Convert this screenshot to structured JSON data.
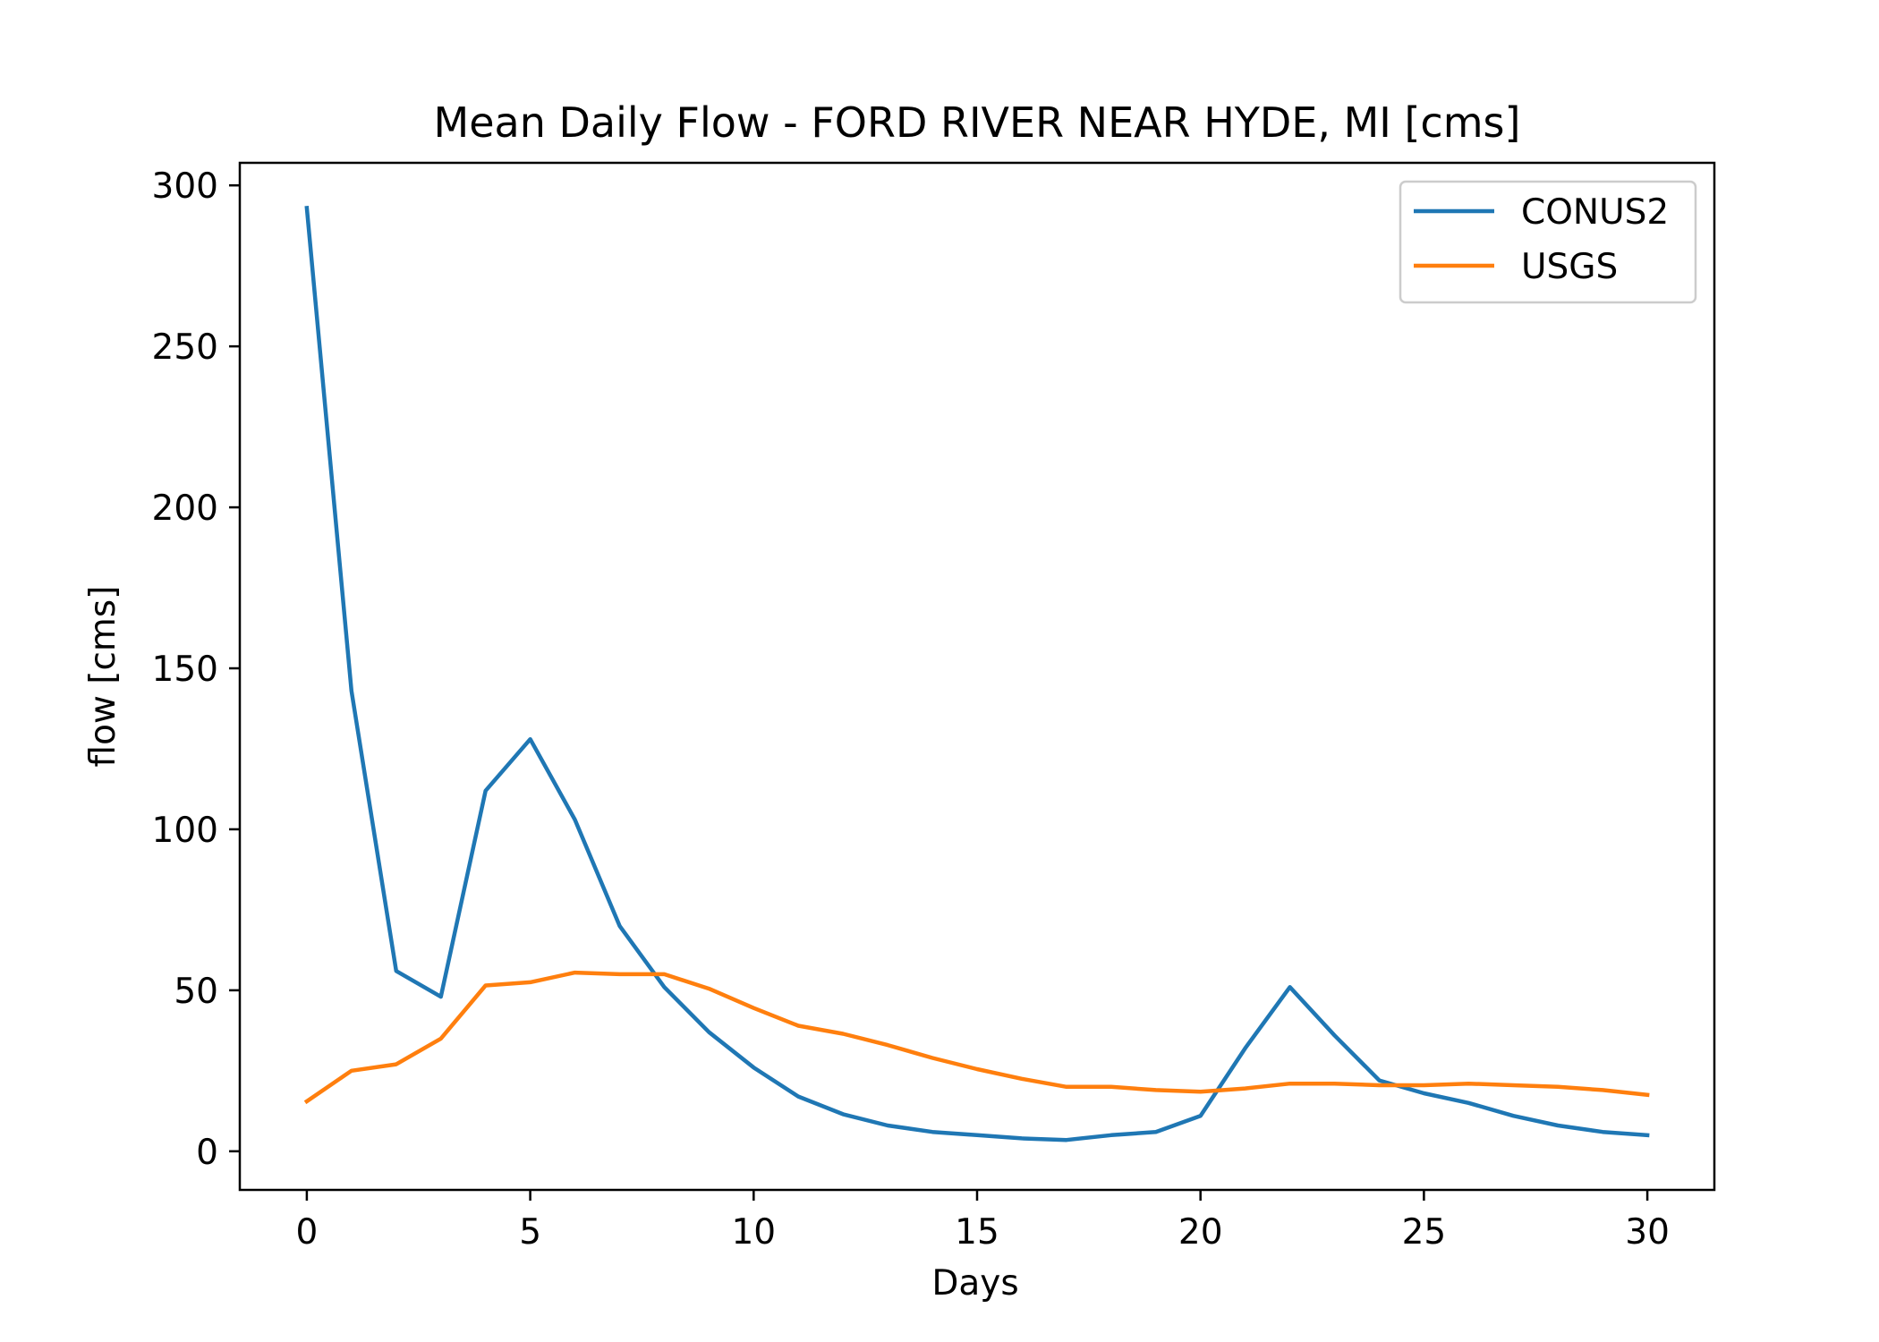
{
  "chart_data": {
    "type": "line",
    "title": "Mean Daily Flow - FORD RIVER NEAR HYDE, MI [cms]",
    "xlabel": "Days",
    "ylabel": "flow [cms]",
    "xlim": [
      -1.5,
      31.5
    ],
    "ylim": [
      -12,
      307
    ],
    "xticks": [
      0,
      5,
      10,
      15,
      20,
      25,
      30
    ],
    "yticks": [
      0,
      50,
      100,
      150,
      200,
      250,
      300
    ],
    "grid": false,
    "legend_position": "top-right",
    "x": [
      0,
      1,
      2,
      3,
      4,
      5,
      6,
      7,
      8,
      9,
      10,
      11,
      12,
      13,
      14,
      15,
      16,
      17,
      18,
      19,
      20,
      21,
      22,
      23,
      24,
      25,
      26,
      27,
      28,
      29,
      30
    ],
    "series": [
      {
        "name": "CONUS2",
        "color": "#1f77b4",
        "values": [
          293,
          143,
          56,
          48,
          112,
          128,
          103,
          70,
          51,
          37,
          26,
          17,
          11.5,
          8,
          6,
          5,
          4,
          3.5,
          5,
          6,
          11,
          32,
          51,
          36,
          22,
          18,
          15,
          11,
          8,
          6,
          5
        ]
      },
      {
        "name": "USGS",
        "color": "#ff7f0e",
        "values": [
          15.5,
          25,
          27,
          35,
          51.5,
          52.5,
          55.5,
          55,
          55,
          50.5,
          44.5,
          39,
          36.5,
          33,
          29,
          25.5,
          22.5,
          20,
          20,
          19,
          18.5,
          19.5,
          21,
          21,
          20.5,
          20.5,
          21,
          20.5,
          20,
          19,
          17.5
        ]
      }
    ]
  }
}
